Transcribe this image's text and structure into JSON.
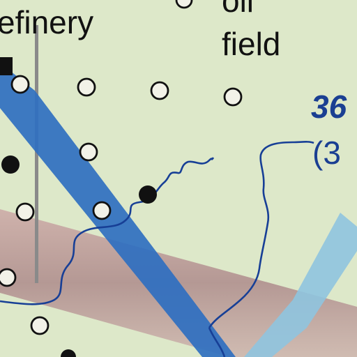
{
  "map": {
    "labels": {
      "refinery": "efinery",
      "oil_field_line1": "oil",
      "oil_field_line2": "field",
      "blue_number": "36",
      "blue_paren": "(3"
    },
    "colors": {
      "background": "#dde8c9",
      "pipeline_dark": "#2f6fc0",
      "pipeline_light": "#8fc4df",
      "corridor_band": "#b58f92",
      "river": "#173f96",
      "wells": "#111111",
      "gray_line": "#8a8a8a"
    }
  }
}
